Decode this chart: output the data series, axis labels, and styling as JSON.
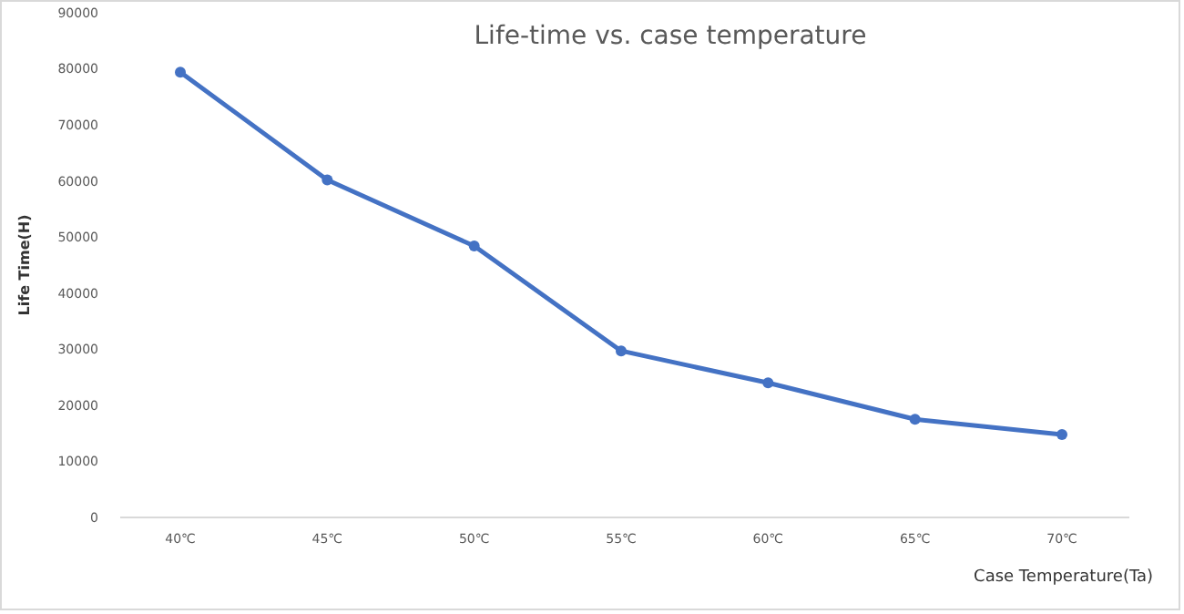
{
  "chart_data": {
    "type": "line",
    "title": "Life-time vs. case temperature",
    "xlabel": "Case Temperature(Ta)",
    "ylabel": "Life Time(H)",
    "categories": [
      "40℃",
      "45℃",
      "50℃",
      "55℃",
      "60℃",
      "65℃",
      "70℃"
    ],
    "series": [
      {
        "color": "#4472c4",
        "values": [
          79400,
          60200,
          48400,
          29700,
          24000,
          17500,
          14800
        ]
      }
    ],
    "ylim": [
      0,
      90000
    ],
    "yticks": [
      0,
      10000,
      20000,
      30000,
      40000,
      50000,
      60000,
      70000,
      80000,
      90000
    ],
    "grid": false,
    "marker": "circle",
    "line_style": "solid"
  }
}
